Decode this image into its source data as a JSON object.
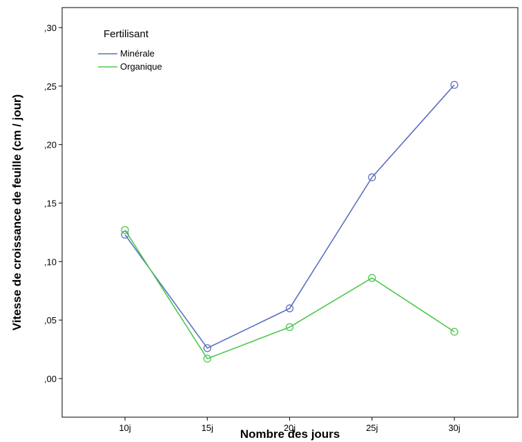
{
  "chart_data": {
    "type": "line",
    "title": "",
    "xlabel": "Nombre des jours",
    "ylabel": "Vitesse de croissance de feuille (cm / jour)",
    "categories": [
      "10j",
      "15j",
      "20j",
      "25j",
      "30j"
    ],
    "ylim": [
      0,
      0.3
    ],
    "yticks": [
      ",00",
      ",05",
      ",10",
      ",15",
      ",20",
      ",25",
      ",30"
    ],
    "grid": false,
    "legend": {
      "title": "Fertilisant",
      "position": "top-left"
    },
    "series": [
      {
        "name": "Minérale",
        "color": "#5b6fbf",
        "values": [
          0.123,
          0.026,
          0.06,
          0.172,
          0.251
        ]
      },
      {
        "name": "Organique",
        "color": "#4ec74e",
        "values": [
          0.127,
          0.017,
          0.044,
          0.086,
          0.04
        ]
      }
    ]
  }
}
